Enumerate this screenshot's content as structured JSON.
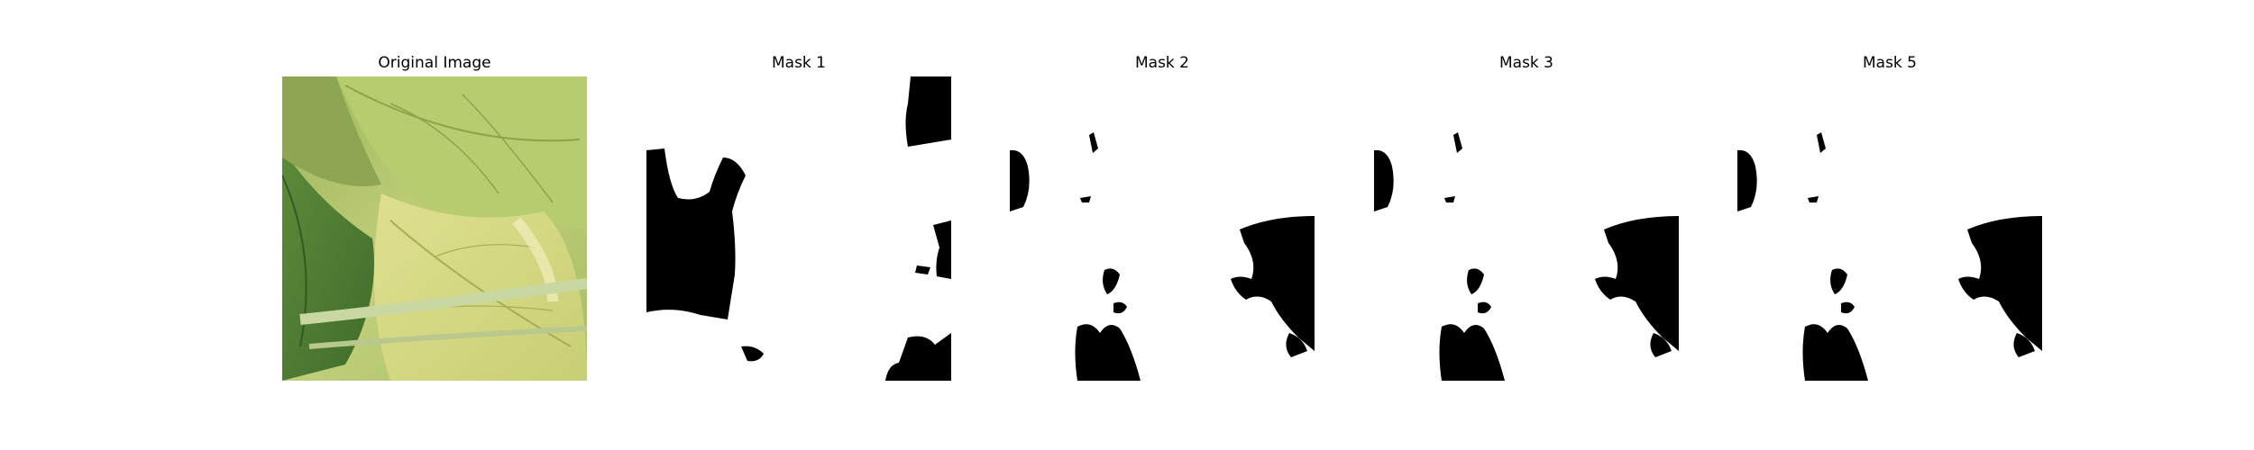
{
  "figure": {
    "panels": [
      {
        "title": "Original Image",
        "kind": "photo",
        "subject": "leaf-photo"
      },
      {
        "title": "Mask 1",
        "kind": "mask"
      },
      {
        "title": "Mask 2",
        "kind": "mask"
      },
      {
        "title": "Mask 3",
        "kind": "mask"
      },
      {
        "title": "Mask 5",
        "kind": "mask"
      }
    ]
  }
}
